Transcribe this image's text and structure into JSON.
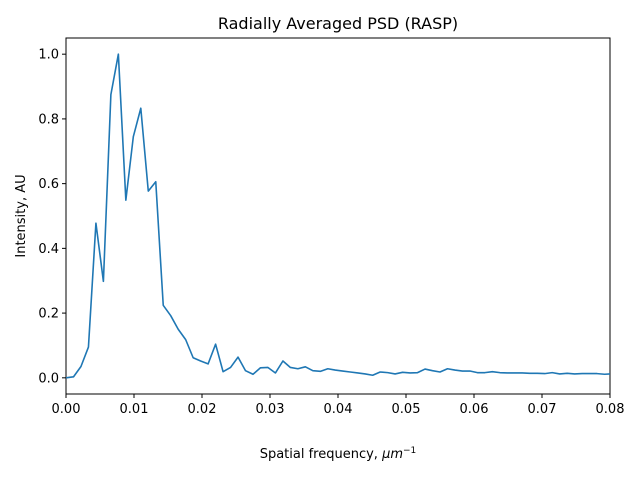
{
  "chart_data": {
    "type": "line",
    "title": "Radially Averaged PSD (RASP)",
    "xlabel": "Spatial frequency, ",
    "xlabel_unit": "μm",
    "xlabel_exp": "−1",
    "ylabel": "Intensity, AU",
    "xlim": [
      0.0,
      0.08
    ],
    "ylim": [
      -0.05,
      1.05
    ],
    "xticks": [
      "0.00",
      "0.01",
      "0.02",
      "0.03",
      "0.04",
      "0.05",
      "0.06",
      "0.07",
      "0.08"
    ],
    "yticks": [
      "0.0",
      "0.2",
      "0.4",
      "0.6",
      "0.8",
      "1.0"
    ],
    "grid": false,
    "series": [
      {
        "color": "#1f77b4",
        "x": [
          0.0,
          0.0011,
          0.0022,
          0.0033,
          0.0044,
          0.0055,
          0.0066,
          0.0077,
          0.0088,
          0.0099,
          0.011,
          0.0121,
          0.0132,
          0.0143,
          0.0154,
          0.0165,
          0.0176,
          0.0187,
          0.0198,
          0.0209,
          0.022,
          0.0231,
          0.0242,
          0.0253,
          0.0264,
          0.0275,
          0.0286,
          0.0297,
          0.0308,
          0.0319,
          0.033,
          0.0341,
          0.0352,
          0.0363,
          0.0374,
          0.0385,
          0.0396,
          0.0407,
          0.0418,
          0.0429,
          0.044,
          0.0451,
          0.0462,
          0.0473,
          0.0484,
          0.0495,
          0.0506,
          0.0517,
          0.0528,
          0.0539,
          0.055,
          0.0561,
          0.0572,
          0.0583,
          0.0594,
          0.0605,
          0.0616,
          0.0627,
          0.0638,
          0.0649,
          0.066,
          0.0671,
          0.0682,
          0.0693,
          0.0704,
          0.0715,
          0.0726,
          0.0737,
          0.0748,
          0.0759,
          0.077,
          0.0781,
          0.0792,
          0.08
        ],
        "y": [
          0.0,
          0.003,
          0.035,
          0.095,
          0.478,
          0.298,
          0.875,
          1.0,
          0.549,
          0.745,
          0.833,
          0.577,
          0.606,
          0.224,
          0.192,
          0.15,
          0.118,
          0.062,
          0.052,
          0.043,
          0.104,
          0.019,
          0.032,
          0.064,
          0.022,
          0.011,
          0.031,
          0.032,
          0.015,
          0.052,
          0.032,
          0.028,
          0.034,
          0.022,
          0.02,
          0.028,
          0.024,
          0.021,
          0.018,
          0.015,
          0.012,
          0.008,
          0.018,
          0.016,
          0.012,
          0.017,
          0.015,
          0.016,
          0.027,
          0.022,
          0.018,
          0.028,
          0.024,
          0.021,
          0.021,
          0.016,
          0.016,
          0.019,
          0.016,
          0.015,
          0.015,
          0.015,
          0.014,
          0.014,
          0.013,
          0.016,
          0.012,
          0.014,
          0.012,
          0.013,
          0.013,
          0.013,
          0.011,
          0.012
        ]
      }
    ]
  }
}
